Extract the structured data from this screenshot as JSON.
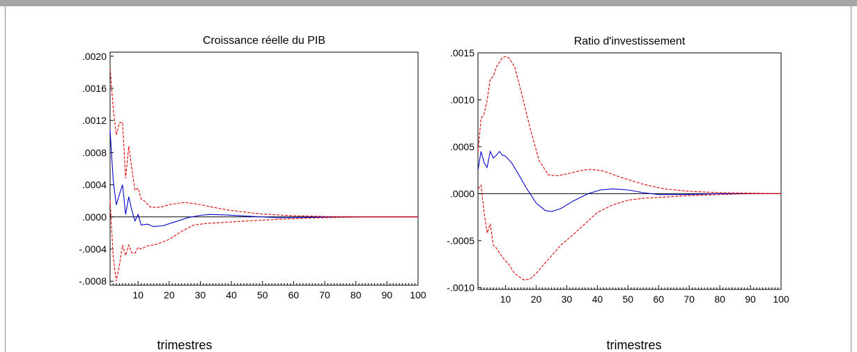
{
  "chart_data": [
    {
      "type": "line",
      "title": "Croissance réelle du PIB",
      "xlabel": "trimestres",
      "ylabel": "",
      "xlim": [
        1,
        100
      ],
      "ylim": [
        -0.00085,
        0.00205
      ],
      "x_ticks": [
        10,
        20,
        30,
        40,
        50,
        60,
        70,
        80,
        90,
        100
      ],
      "y_ticks": [
        -0.0008,
        -0.0004,
        0.0,
        0.0004,
        0.0008,
        0.0012,
        0.0016,
        0.002
      ],
      "y_tick_labels": [
        "-.0008",
        "-.0004",
        ".0000",
        ".0004",
        ".0008",
        ".0012",
        ".0016",
        ".0020"
      ],
      "zero_line": true,
      "colors": {
        "response": "#0000cc",
        "bands": "#dd0000",
        "zero": "#000000"
      },
      "series": [
        {
          "role": "response",
          "style": "solid",
          "points": [
            [
              1,
              0.00108
            ],
            [
              2,
              0.00045
            ],
            [
              3,
              0.00015
            ],
            [
              4,
              0.00028
            ],
            [
              5,
              0.0004
            ],
            [
              6,
              3e-05
            ],
            [
              7,
              0.00025
            ],
            [
              8,
              8e-05
            ],
            [
              9,
              -5e-05
            ],
            [
              10,
              3e-05
            ],
            [
              11,
              -0.0001
            ],
            [
              13,
              -9e-05
            ],
            [
              15,
              -0.00012
            ],
            [
              18,
              -0.00011
            ],
            [
              22,
              -6e-05
            ],
            [
              26,
              -1e-05
            ],
            [
              30,
              2e-05
            ],
            [
              33,
              3e-05
            ],
            [
              38,
              2.5e-05
            ],
            [
              45,
              1e-05
            ],
            [
              55,
              -1e-05
            ],
            [
              65,
              -5e-06
            ],
            [
              75,
              0.0
            ],
            [
              85,
              0.0
            ],
            [
              100,
              0.0
            ]
          ]
        },
        {
          "role": "upper",
          "style": "dashed",
          "points": [
            [
              1,
              0.00185
            ],
            [
              2,
              0.00135
            ],
            [
              3,
              0.00102
            ],
            [
              4,
              0.00117
            ],
            [
              5,
              0.00118
            ],
            [
              6,
              0.00048
            ],
            [
              7,
              0.00088
            ],
            [
              8,
              0.0006
            ],
            [
              9,
              0.00033
            ],
            [
              10,
              0.00036
            ],
            [
              11,
              0.00022
            ],
            [
              12,
              0.0002
            ],
            [
              14,
              0.00012
            ],
            [
              17,
              0.00012
            ],
            [
              21,
              0.00016
            ],
            [
              25,
              0.00018
            ],
            [
              29,
              0.00016
            ],
            [
              34,
              0.00012
            ],
            [
              40,
              8e-05
            ],
            [
              50,
              3.5e-05
            ],
            [
              60,
              1.5e-05
            ],
            [
              70,
              5e-06
            ],
            [
              80,
              0.0
            ],
            [
              100,
              0.0
            ]
          ]
        },
        {
          "role": "lower",
          "style": "dashed",
          "points": [
            [
              1,
              0.0002
            ],
            [
              2,
              -0.0005
            ],
            [
              3,
              -0.0008
            ],
            [
              4,
              -0.0006
            ],
            [
              5,
              -0.00035
            ],
            [
              6,
              -0.00048
            ],
            [
              7,
              -0.00035
            ],
            [
              8,
              -0.00045
            ],
            [
              9,
              -0.00045
            ],
            [
              10,
              -0.00038
            ],
            [
              11,
              -0.0004
            ],
            [
              13,
              -0.00036
            ],
            [
              16,
              -0.00034
            ],
            [
              20,
              -0.00028
            ],
            [
              24,
              -0.00018
            ],
            [
              28,
              -0.0001
            ],
            [
              32,
              -8e-05
            ],
            [
              37,
              -7e-05
            ],
            [
              45,
              -5e-05
            ],
            [
              55,
              -3e-05
            ],
            [
              65,
              -1.5e-05
            ],
            [
              75,
              -5e-06
            ],
            [
              85,
              0.0
            ],
            [
              100,
              0.0
            ]
          ]
        }
      ]
    },
    {
      "type": "line",
      "title": "Ratio d'investissement",
      "xlabel": "trimestres",
      "ylabel": "",
      "xlim": [
        1,
        100
      ],
      "ylim": [
        -0.00102,
        0.0015
      ],
      "x_ticks": [
        10,
        20,
        30,
        40,
        50,
        60,
        70,
        80,
        90,
        100
      ],
      "y_ticks": [
        -0.001,
        -0.0005,
        0.0,
        0.0005,
        0.001,
        0.0015
      ],
      "y_tick_labels": [
        "-.0010",
        "-.0005",
        ".0000",
        ".0005",
        ".0010",
        ".0015"
      ],
      "zero_line": true,
      "colors": {
        "response": "#0000cc",
        "bands": "#dd0000",
        "zero": "#000000"
      },
      "series": [
        {
          "role": "response",
          "style": "solid",
          "points": [
            [
              1,
              0.00025
            ],
            [
              2,
              0.00045
            ],
            [
              3,
              0.00033
            ],
            [
              4,
              0.00028
            ],
            [
              5,
              0.00045
            ],
            [
              6,
              0.00038
            ],
            [
              7,
              0.00041
            ],
            [
              8,
              0.00045
            ],
            [
              9,
              0.00041
            ],
            [
              10,
              0.0004
            ],
            [
              12,
              0.00033
            ],
            [
              14,
              0.00022
            ],
            [
              17,
              5e-05
            ],
            [
              20,
              -0.0001
            ],
            [
              23,
              -0.00018
            ],
            [
              25,
              -0.00019
            ],
            [
              28,
              -0.00016
            ],
            [
              32,
              -8e-05
            ],
            [
              37,
              0.0
            ],
            [
              41,
              4e-05
            ],
            [
              45,
              5e-05
            ],
            [
              50,
              4e-05
            ],
            [
              55,
              1e-05
            ],
            [
              60,
              -1e-05
            ],
            [
              68,
              -1e-05
            ],
            [
              80,
              0.0
            ],
            [
              100,
              0.0
            ]
          ]
        },
        {
          "role": "upper",
          "style": "dashed",
          "points": [
            [
              1,
              0.00045
            ],
            [
              2,
              0.0008
            ],
            [
              3,
              0.00085
            ],
            [
              4,
              0.001
            ],
            [
              5,
              0.00122
            ],
            [
              6,
              0.00125
            ],
            [
              7,
              0.00135
            ],
            [
              8,
              0.0014
            ],
            [
              9,
              0.00145
            ],
            [
              10,
              0.00146
            ],
            [
              11,
              0.00145
            ],
            [
              13,
              0.00135
            ],
            [
              15,
              0.0011
            ],
            [
              18,
              0.0007
            ],
            [
              21,
              0.00035
            ],
            [
              24,
              0.0002
            ],
            [
              27,
              0.00019
            ],
            [
              30,
              0.00021
            ],
            [
              35,
              0.00025
            ],
            [
              38,
              0.00026
            ],
            [
              42,
              0.00024
            ],
            [
              48,
              0.00017
            ],
            [
              55,
              0.0001
            ],
            [
              62,
              5e-05
            ],
            [
              70,
              2.5e-05
            ],
            [
              80,
              1e-05
            ],
            [
              90,
              5e-06
            ],
            [
              100,
              0.0
            ]
          ]
        },
        {
          "role": "lower",
          "style": "dashed",
          "points": [
            [
              1,
              5e-05
            ],
            [
              2,
              9e-05
            ],
            [
              3,
              -0.0002
            ],
            [
              4,
              -0.00042
            ],
            [
              5,
              -0.00032
            ],
            [
              6,
              -0.00055
            ],
            [
              7,
              -0.00058
            ],
            [
              9,
              -0.00068
            ],
            [
              11,
              -0.00075
            ],
            [
              13,
              -0.00085
            ],
            [
              16,
              -0.00092
            ],
            [
              18,
              -0.00091
            ],
            [
              20,
              -0.00085
            ],
            [
              24,
              -0.0007
            ],
            [
              28,
              -0.00055
            ],
            [
              32,
              -0.00044
            ],
            [
              36,
              -0.00032
            ],
            [
              40,
              -0.0002
            ],
            [
              45,
              -0.00012
            ],
            [
              50,
              -7e-05
            ],
            [
              55,
              -5e-05
            ],
            [
              60,
              -4e-05
            ],
            [
              70,
              -2e-05
            ],
            [
              80,
              -1e-05
            ],
            [
              90,
              0.0
            ],
            [
              100,
              0.0
            ]
          ]
        }
      ]
    }
  ]
}
